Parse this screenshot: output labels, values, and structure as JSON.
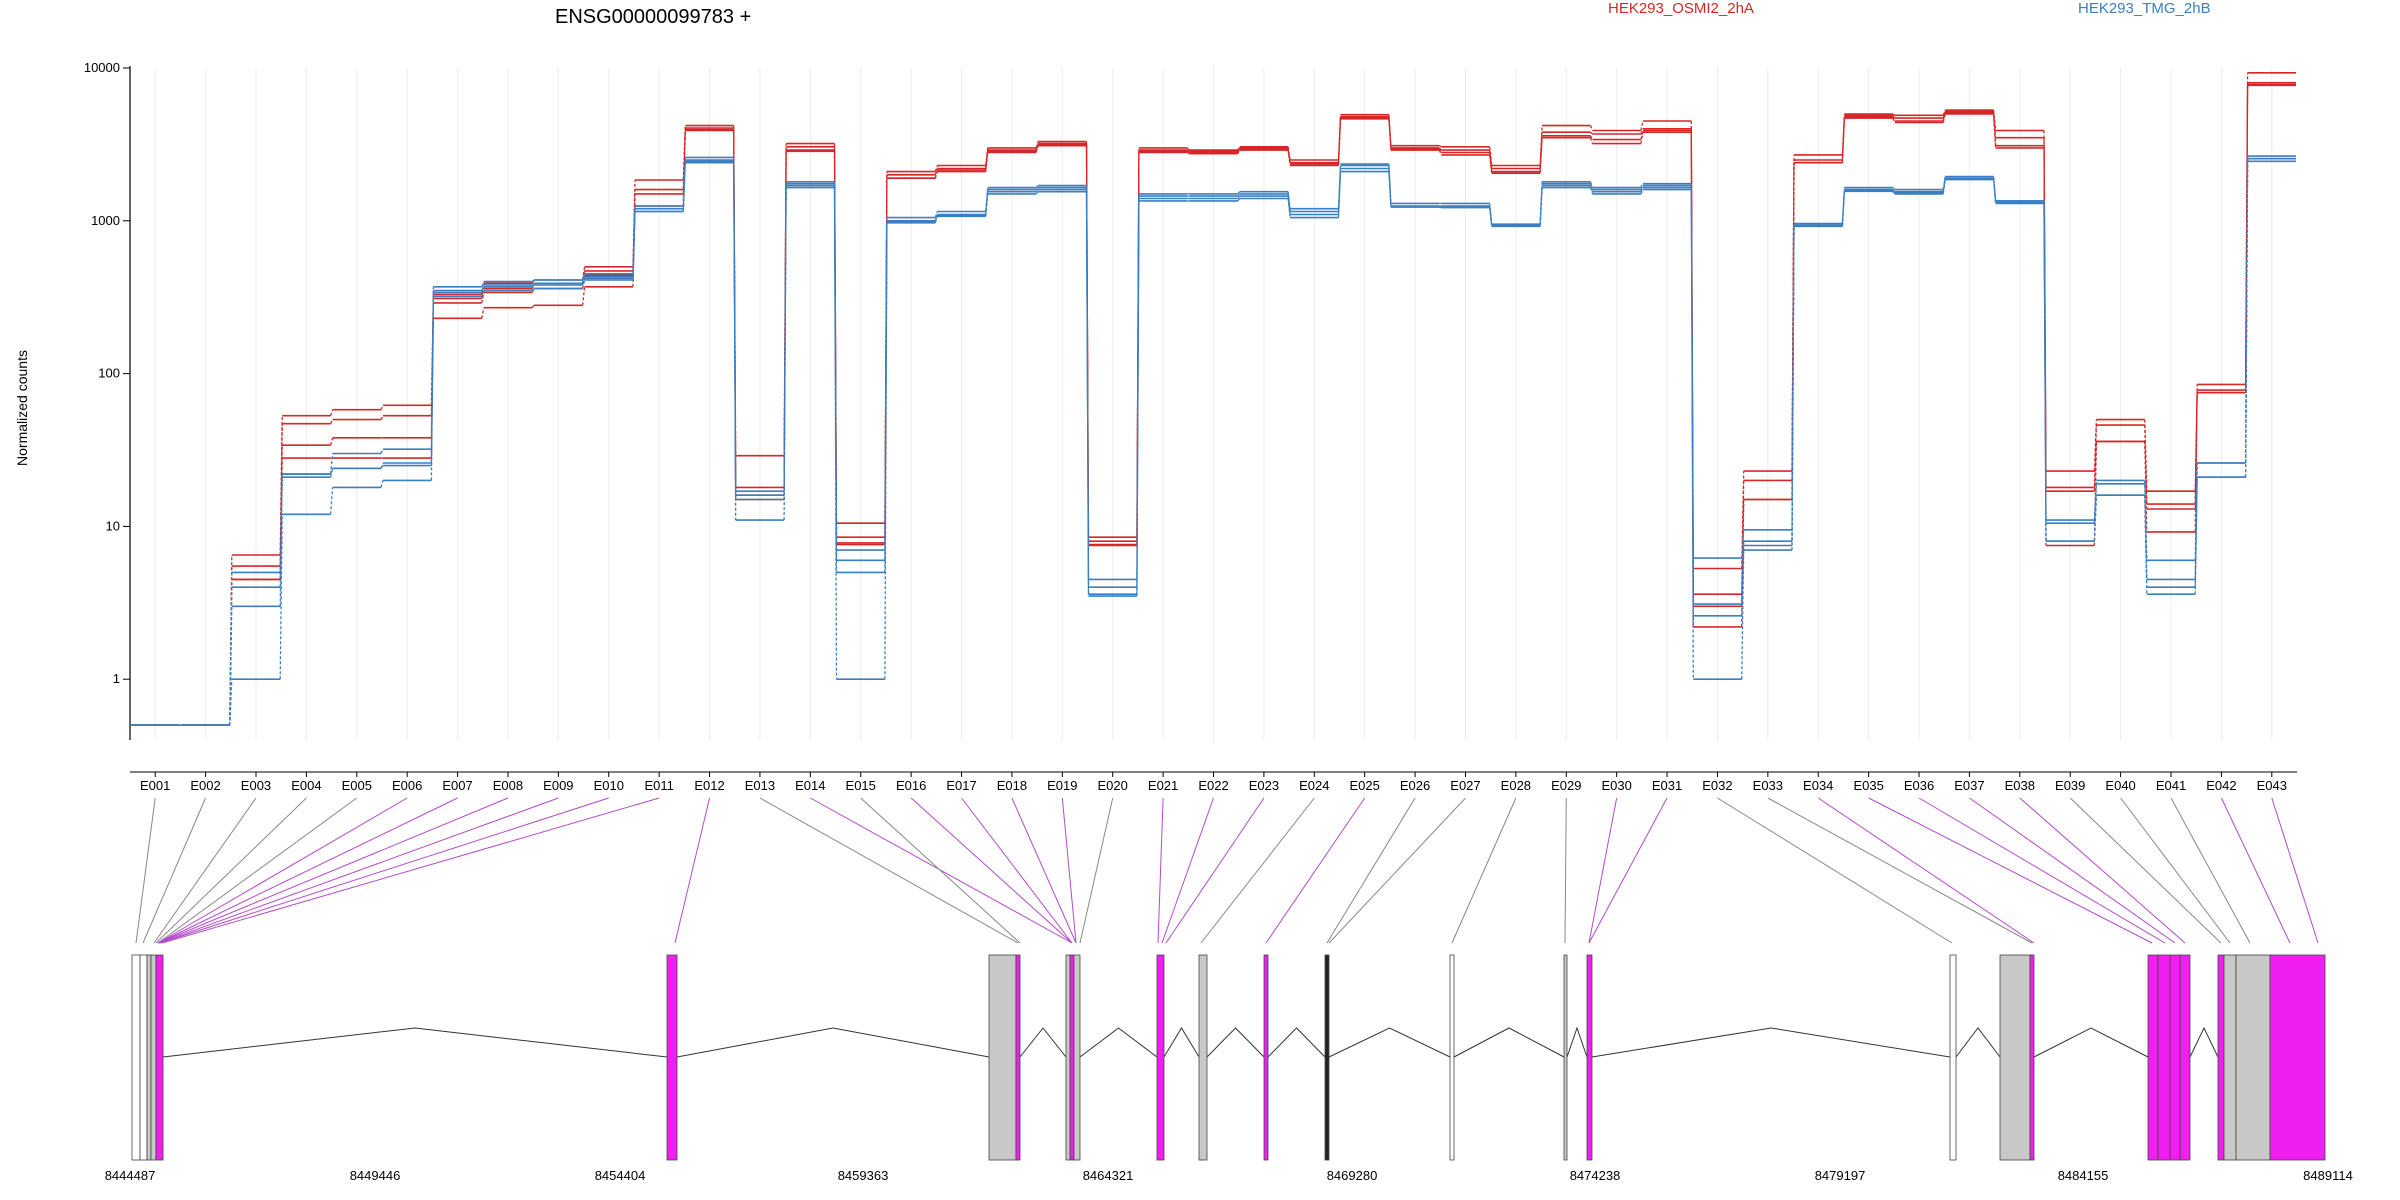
{
  "chart_data": {
    "type": "line",
    "title": "ENSG00000099783 +",
    "ylabel": "Normalized counts",
    "yscale": "log",
    "ylim": [
      0.4,
      10000
    ],
    "yticks": [
      1,
      10,
      100,
      1000,
      10000
    ],
    "categories": [
      "E001",
      "E002",
      "E003",
      "E004",
      "E005",
      "E006",
      "E007",
      "E008",
      "E009",
      "E010",
      "E011",
      "E012",
      "E013",
      "E014",
      "E015",
      "E016",
      "E017",
      "E018",
      "E019",
      "E020",
      "E021",
      "E022",
      "E023",
      "E024",
      "E025",
      "E026",
      "E027",
      "E028",
      "E029",
      "E030",
      "E031",
      "E032",
      "E033",
      "E034",
      "E035",
      "E036",
      "E037",
      "E038",
      "E039",
      "E040",
      "E041",
      "E042",
      "E043"
    ],
    "series": [
      {
        "name": "HEK293_OSMI2_2hA",
        "color": "#d62728",
        "replicates": [
          [
            0.5,
            0.5,
            6.5,
            53,
            58,
            62,
            330,
            390,
            410,
            500,
            1850,
            4200,
            29,
            3200,
            10.5,
            2100,
            2300,
            3000,
            3300,
            8.5,
            3000,
            2900,
            3050,
            2500,
            4950,
            3100,
            3050,
            2300,
            4200,
            3900,
            4500,
            5.3,
            23,
            2700,
            5000,
            4900,
            5300,
            3900,
            23,
            50,
            17,
            85,
            9300
          ],
          [
            0.5,
            0.5,
            5.5,
            47,
            50,
            53,
            310,
            360,
            390,
            470,
            1600,
            4050,
            18,
            3050,
            8.5,
            2000,
            2200,
            2900,
            3200,
            8,
            2900,
            2850,
            3000,
            2400,
            4800,
            3000,
            2900,
            2200,
            3800,
            3700,
            4000,
            3.6,
            20,
            2500,
            4900,
            4700,
            5200,
            3500,
            18,
            46,
            14,
            78,
            8000
          ],
          [
            0.5,
            0.5,
            4.5,
            34,
            38,
            38,
            290,
            340,
            360,
            440,
            1500,
            3950,
            16,
            2900,
            7.8,
            1900,
            2150,
            2850,
            3150,
            7.6,
            2850,
            2800,
            2950,
            2350,
            4700,
            2950,
            2800,
            2100,
            3600,
            3400,
            3900,
            3.0,
            15,
            2400,
            4800,
            4500,
            5100,
            3100,
            17,
            36,
            13,
            75,
            7800
          ],
          [
            0.5,
            0.5,
            4.5,
            28,
            28,
            28,
            230,
            270,
            280,
            370,
            1250,
            3900,
            15,
            2850,
            7.6,
            1900,
            2100,
            2800,
            3100,
            7.5,
            2800,
            2750,
            2900,
            2300,
            4650,
            2900,
            2700,
            2050,
            3500,
            3200,
            3800,
            2.2,
            15,
            2400,
            4700,
            4400,
            5000,
            3000,
            7.5,
            36,
            9.2,
            75,
            7700
          ]
        ]
      },
      {
        "name": "HEK293_TMG_2hB",
        "color": "#3a7fc1",
        "replicates": [
          [
            0.5,
            0.5,
            5,
            22,
            30,
            32,
            370,
            400,
            410,
            450,
            1250,
            2600,
            17,
            1800,
            7,
            1050,
            1150,
            1650,
            1700,
            4.5,
            1500,
            1500,
            1550,
            1200,
            2350,
            1300,
            1300,
            950,
            1800,
            1650,
            1750,
            6.2,
            9.5,
            960,
            1650,
            1600,
            1950,
            1350,
            11,
            20,
            6,
            26,
            2650
          ],
          [
            0.5,
            0.5,
            4,
            22,
            24,
            26,
            350,
            380,
            390,
            430,
            1200,
            2500,
            16,
            1750,
            6,
            1000,
            1100,
            1600,
            1650,
            4,
            1450,
            1450,
            1500,
            1150,
            2300,
            1250,
            1250,
            940,
            1750,
            1600,
            1700,
            3.1,
            8,
            940,
            1600,
            1550,
            1900,
            1350,
            10.5,
            19,
            4.5,
            26,
            2550
          ],
          [
            0.5,
            0.5,
            3,
            21,
            24,
            25,
            340,
            370,
            380,
            420,
            1150,
            2450,
            15,
            1700,
            5,
            980,
            1080,
            1550,
            1600,
            3.6,
            1400,
            1400,
            1450,
            1100,
            2200,
            1240,
            1230,
            930,
            1700,
            1550,
            1650,
            2.6,
            7.5,
            930,
            1580,
            1520,
            1880,
            1320,
            8,
            16,
            4,
            21,
            2550
          ],
          [
            0.5,
            0.5,
            1,
            12,
            18,
            20,
            320,
            350,
            360,
            410,
            1150,
            2400,
            11,
            1650,
            1,
            970,
            1070,
            1500,
            1550,
            3.5,
            1350,
            1350,
            1400,
            1050,
            2100,
            1230,
            1220,
            920,
            1650,
            1500,
            1600,
            1,
            7,
            920,
            1560,
            1500,
            1860,
            1300,
            8,
            16,
            3.6,
            21,
            2450
          ]
        ]
      }
    ],
    "gene_model": {
      "coordinate_labels": [
        "8444487",
        "8449446",
        "8454404",
        "8459363",
        "8464321",
        "8469280",
        "8474238",
        "8479197",
        "8484155",
        "8489114"
      ]
    }
  }
}
